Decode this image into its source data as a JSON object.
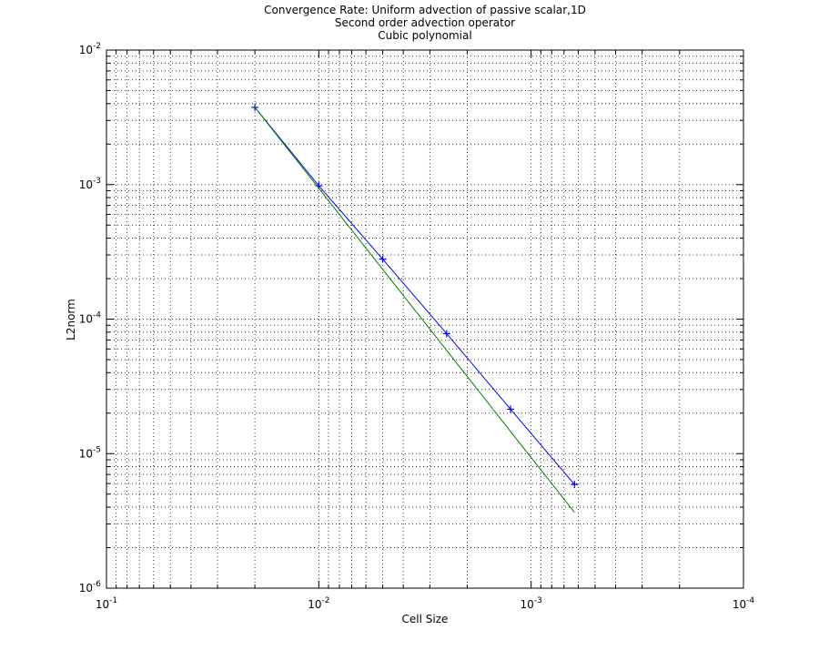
{
  "chart_data": {
    "type": "line",
    "title": "Convergence Rate: Uniform advection of passive scalar,1D",
    "subtitle": [
      "Second order advection operator",
      "Cubic polynomial"
    ],
    "x_label": "Cell Size",
    "y_label": "L2norm",
    "x": [
      0.02,
      0.01,
      0.005,
      0.0025,
      0.00125,
      0.000625
    ],
    "series": [
      {
        "color": "#0000ff",
        "marker": "+",
        "values": [
          0.00375,
          0.00098,
          0.000279,
          7.8e-05,
          2.14e-05,
          5.9e-06
        ]
      },
      {
        "color": "#008000",
        "values": [
          0.00375,
          0.000938,
          0.000234,
          5.86e-05,
          1.46e-05,
          3.66e-06
        ]
      }
    ],
    "log_x": true,
    "log_y": true,
    "grid": true,
    "xlim": [
      0.1,
      0.0001
    ],
    "xticks": [
      {
        "value": 0.1,
        "label": "10-1"
      },
      {
        "value": 0.01,
        "label": "10-2"
      },
      {
        "value": 0.001,
        "label": "10-3"
      },
      {
        "value": 0.0001,
        "label": "10-4"
      }
    ],
    "ylim": [
      1e-06,
      0.01
    ],
    "yticks": [
      {
        "value": 1e-06,
        "label": "10-6"
      },
      {
        "value": 1e-05,
        "label": "10-5"
      },
      {
        "value": 0.0001,
        "label": "10-4"
      },
      {
        "value": 0.001,
        "label": "10-3"
      },
      {
        "value": 0.01,
        "label": "10-2"
      }
    ]
  }
}
